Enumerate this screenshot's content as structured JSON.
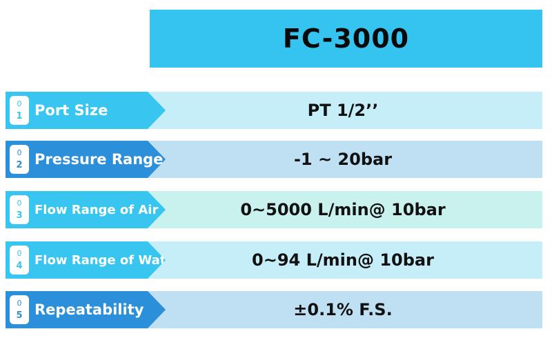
{
  "header": {
    "title": "FC-3000"
  },
  "colors": {
    "header_bg": "#35c4ef",
    "tab_light": "#38c6f0",
    "tab_dark": "#2b8fd9",
    "band_light": "#c5eef9",
    "band_blue": "#bfdff3",
    "band_mint": "#c9f2ef"
  },
  "specs": [
    {
      "num": [
        "0",
        "1"
      ],
      "label": "Port Size",
      "value": "PT 1/2’’"
    },
    {
      "num": [
        "0",
        "2"
      ],
      "label": "Pressure Range",
      "value": "-1 ~ 20bar"
    },
    {
      "num": [
        "0",
        "3"
      ],
      "label": "Flow Range of Air",
      "value": "0~5000 L/min@ 10bar"
    },
    {
      "num": [
        "0",
        "4"
      ],
      "label": "Flow Range of Water",
      "value": "0~94 L/min@ 10bar"
    },
    {
      "num": [
        "0",
        "5"
      ],
      "label": "Repeatability",
      "value": "±0.1% F.S."
    }
  ]
}
